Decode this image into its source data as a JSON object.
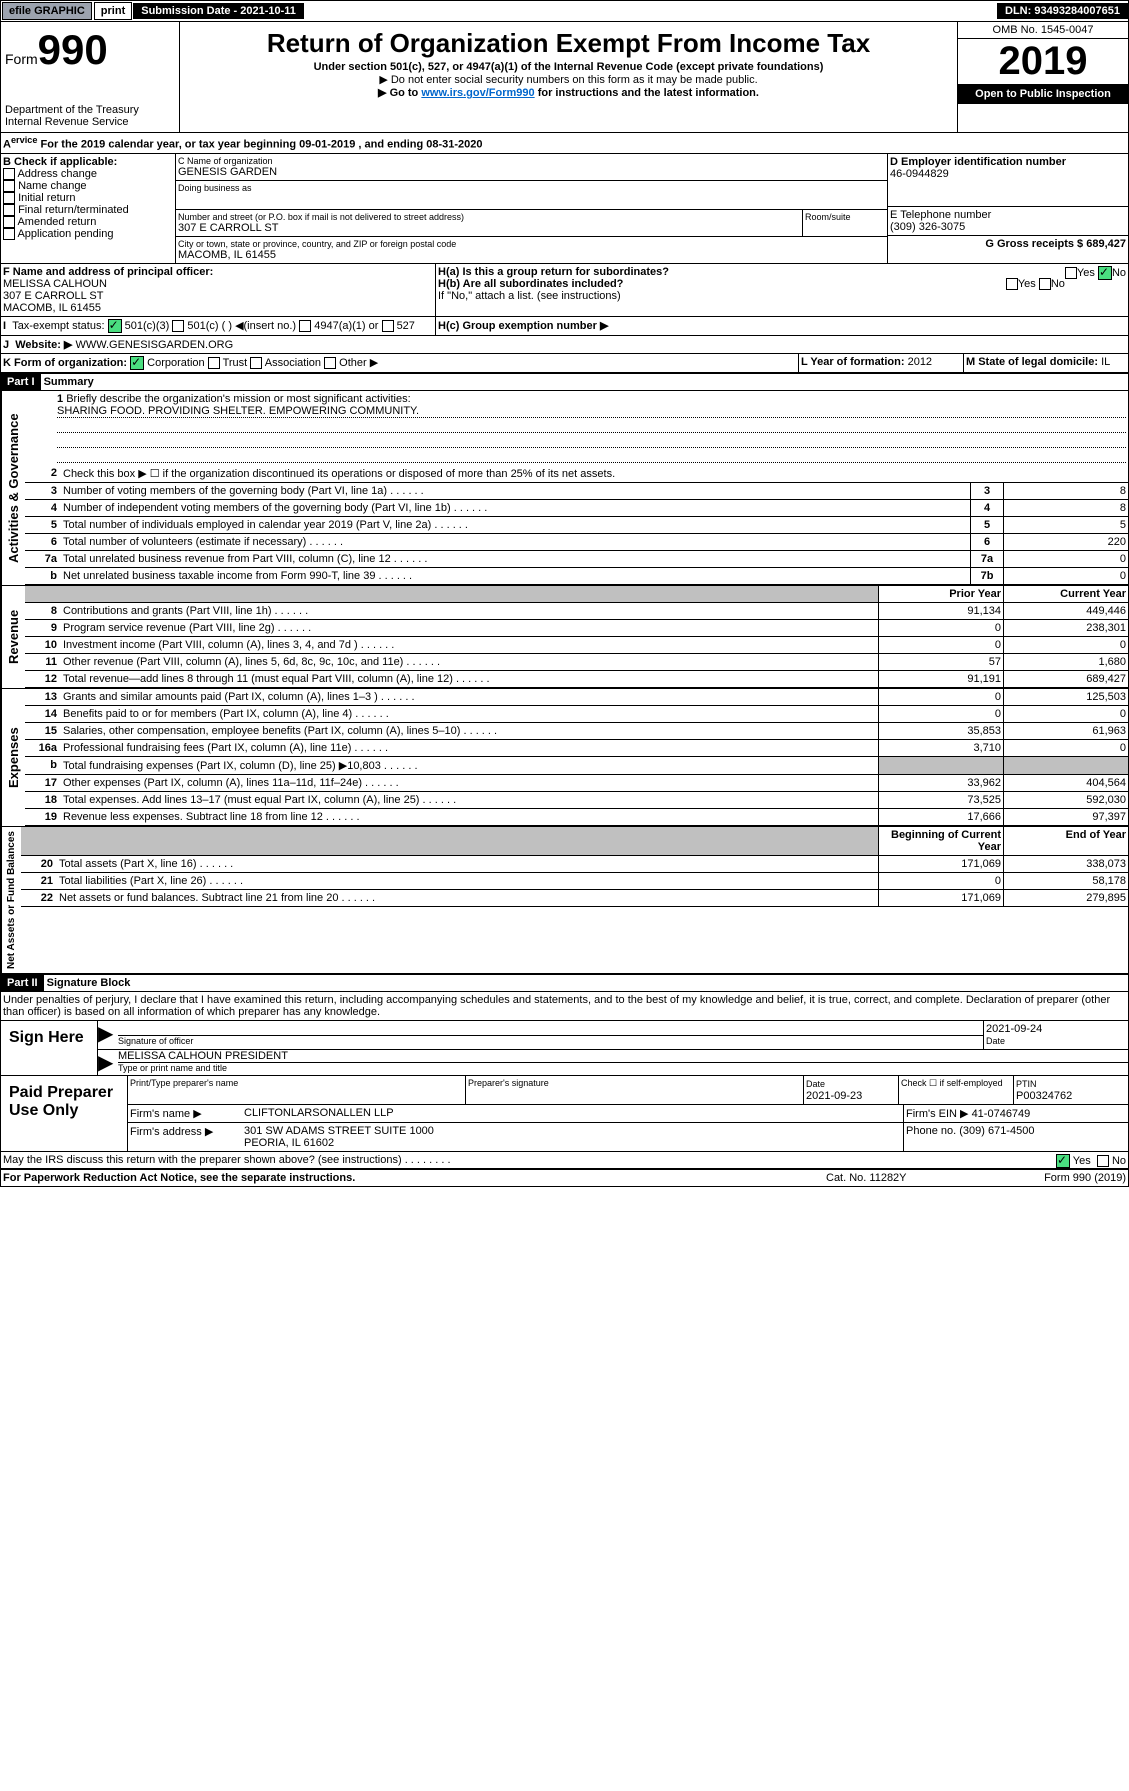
{
  "topbar": {
    "efile": "efile GRAPHIC",
    "print": "print",
    "submission": "Submission Date - 2021-10-11",
    "dln": "DLN: 93493284007651"
  },
  "header": {
    "form": "Form",
    "formnum": "990",
    "dept": "Department of the Treasury\nInternal Revenue Service",
    "title": "Return of Organization Exempt From Income Tax",
    "subtitle": "Under section 501(c), 527, or 4947(a)(1) of the Internal Revenue Code (except private foundations)",
    "note1": "▶ Do not enter social security numbers on this form as it may be made public.",
    "note2_pre": "▶ Go to ",
    "note2_link": "www.irs.gov/Form990",
    "note2_post": " for instructions and the latest information.",
    "omb": "OMB No. 1545-0047",
    "year": "2019",
    "inspect": "Open to Public Inspection"
  },
  "periodA": "For the 2019 calendar year, or tax year beginning 09-01-2019   , and ending 08-31-2020",
  "sectionB": {
    "label": "B Check if applicable:",
    "opts": [
      "Address change",
      "Name change",
      "Initial return",
      "Final return/terminated",
      "Amended return",
      "Application pending"
    ]
  },
  "sectionC": {
    "nameLabel": "C Name of organization",
    "name": "GENESIS GARDEN",
    "dbaLabel": "Doing business as",
    "addrLabel": "Number and street (or P.O. box if mail is not delivered to street address)",
    "roomLabel": "Room/suite",
    "addr": "307 E CARROLL ST",
    "cityLabel": "City or town, state or province, country, and ZIP or foreign postal code",
    "city": "MACOMB, IL  61455"
  },
  "sectionD": {
    "label": "D Employer identification number",
    "value": "46-0944829"
  },
  "sectionE": {
    "label": "E Telephone number",
    "value": "(309) 326-3075"
  },
  "sectionG": {
    "label": "G Gross receipts $",
    "value": "689,427"
  },
  "sectionF": {
    "label": "F  Name and address of principal officer:",
    "name": "MELISSA CALHOUN",
    "addr": "307 E CARROLL ST",
    "city": "MACOMB, IL  61455"
  },
  "sectionH": {
    "a": "H(a)  Is this a group return for subordinates?",
    "b": "H(b)  Are all subordinates included?",
    "note": "If \"No,\" attach a list. (see instructions)",
    "c": "H(c)  Group exemption number ▶",
    "yes": "Yes",
    "no": "No"
  },
  "sectionI": {
    "label": "Tax-exempt status:",
    "o1": "501(c)(3)",
    "o2": "501(c) (   ) ◀(insert no.)",
    "o3": "4947(a)(1) or",
    "o4": "527"
  },
  "sectionJ": {
    "label": "Website: ▶",
    "value": " WWW.GENESISGARDEN.ORG"
  },
  "sectionK": {
    "label": "K Form of organization:",
    "o1": "Corporation",
    "o2": "Trust",
    "o3": "Association",
    "o4": "Other ▶"
  },
  "sectionL": {
    "label": "L Year of formation:",
    "value": "2012"
  },
  "sectionM": {
    "label": "M State of legal domicile:",
    "value": "IL"
  },
  "part1": {
    "label": "Part I",
    "title": "Summary"
  },
  "line1": {
    "n": "1",
    "t": "Briefly describe the organization's mission or most significant activities:",
    "v": "SHARING FOOD. PROVIDING SHELTER. EMPOWERING COMMUNITY."
  },
  "line2": {
    "n": "2",
    "t": "Check this box ▶ ☐  if the organization discontinued its operations or disposed of more than 25% of its net assets."
  },
  "lines": [
    {
      "n": "3",
      "t": "Number of voting members of the governing body (Part VI, line 1a)",
      "b": "3",
      "v": "8"
    },
    {
      "n": "4",
      "t": "Number of independent voting members of the governing body (Part VI, line 1b)",
      "b": "4",
      "v": "8"
    },
    {
      "n": "5",
      "t": "Total number of individuals employed in calendar year 2019 (Part V, line 2a)",
      "b": "5",
      "v": "5"
    },
    {
      "n": "6",
      "t": "Total number of volunteers (estimate if necessary)",
      "b": "6",
      "v": "220"
    },
    {
      "n": "7a",
      "t": "Total unrelated business revenue from Part VIII, column (C), line 12",
      "b": "7a",
      "v": "0"
    },
    {
      "n": "b",
      "t": "Net unrelated business taxable income from Form 990-T, line 39",
      "b": "7b",
      "v": "0"
    }
  ],
  "colhdrs": {
    "prior": "Prior Year",
    "current": "Current Year",
    "beg": "Beginning of Current Year",
    "end": "End of Year"
  },
  "revenue": [
    {
      "n": "8",
      "t": "Contributions and grants (Part VIII, line 1h)",
      "p": "91,134",
      "c": "449,446"
    },
    {
      "n": "9",
      "t": "Program service revenue (Part VIII, line 2g)",
      "p": "0",
      "c": "238,301"
    },
    {
      "n": "10",
      "t": "Investment income (Part VIII, column (A), lines 3, 4, and 7d )",
      "p": "0",
      "c": "0"
    },
    {
      "n": "11",
      "t": "Other revenue (Part VIII, column (A), lines 5, 6d, 8c, 9c, 10c, and 11e)",
      "p": "57",
      "c": "1,680"
    },
    {
      "n": "12",
      "t": "Total revenue—add lines 8 through 11 (must equal Part VIII, column (A), line 12)",
      "p": "91,191",
      "c": "689,427"
    }
  ],
  "expenses": [
    {
      "n": "13",
      "t": "Grants and similar amounts paid (Part IX, column (A), lines 1–3 )",
      "p": "0",
      "c": "125,503"
    },
    {
      "n": "14",
      "t": "Benefits paid to or for members (Part IX, column (A), line 4)",
      "p": "0",
      "c": "0"
    },
    {
      "n": "15",
      "t": "Salaries, other compensation, employee benefits (Part IX, column (A), lines 5–10)",
      "p": "35,853",
      "c": "61,963"
    },
    {
      "n": "16a",
      "t": "Professional fundraising fees (Part IX, column (A), line 11e)",
      "p": "3,710",
      "c": "0"
    },
    {
      "n": "b",
      "t": "Total fundraising expenses (Part IX, column (D), line 25) ▶10,803",
      "p": "",
      "c": "",
      "shade": true
    },
    {
      "n": "17",
      "t": "Other expenses (Part IX, column (A), lines 11a–11d, 11f–24e)",
      "p": "33,962",
      "c": "404,564"
    },
    {
      "n": "18",
      "t": "Total expenses. Add lines 13–17 (must equal Part IX, column (A), line 25)",
      "p": "73,525",
      "c": "592,030"
    },
    {
      "n": "19",
      "t": "Revenue less expenses. Subtract line 18 from line 12",
      "p": "17,666",
      "c": "97,397"
    }
  ],
  "netassets": [
    {
      "n": "20",
      "t": "Total assets (Part X, line 16)",
      "p": "171,069",
      "c": "338,073"
    },
    {
      "n": "21",
      "t": "Total liabilities (Part X, line 26)",
      "p": "0",
      "c": "58,178"
    },
    {
      "n": "22",
      "t": "Net assets or fund balances. Subtract line 21 from line 20",
      "p": "171,069",
      "c": "279,895"
    }
  ],
  "vlabels": {
    "ag": "Activities & Governance",
    "rev": "Revenue",
    "exp": "Expenses",
    "na": "Net Assets or Fund Balances"
  },
  "part2": {
    "label": "Part II",
    "title": "Signature Block",
    "decl": "Under penalties of perjury, I declare that I have examined this return, including accompanying schedules and statements, and to the best of my knowledge and belief, it is true, correct, and complete. Declaration of preparer (other than officer) is based on all information of which preparer has any knowledge."
  },
  "sign": {
    "here": "Sign Here",
    "sig": "Signature of officer",
    "date": "2021-09-24",
    "dateL": "Date",
    "name": "MELISSA CALHOUN PRESIDENT",
    "nameL": "Type or print name and title"
  },
  "paid": {
    "label": "Paid Preparer Use Only",
    "h1": "Print/Type preparer's name",
    "h2": "Preparer's signature",
    "h3": "Date",
    "h4": "Check ☐ if self-employed",
    "h5": "PTIN",
    "date": "2021-09-23",
    "ptin": "P00324762",
    "firmL": "Firm's name    ▶",
    "firm": "CLIFTONLARSONALLEN LLP",
    "einL": "Firm's EIN ▶",
    "ein": "41-0746749",
    "addrL": "Firm's address ▶",
    "addr": "301 SW ADAMS STREET SUITE 1000",
    "city": "PEORIA, IL  61602",
    "phoneL": "Phone no.",
    "phone": "(309) 671-4500"
  },
  "footer": {
    "q": "May the IRS discuss this return with the preparer shown above? (see instructions)",
    "yes": "Yes",
    "no": "No",
    "pra": "For Paperwork Reduction Act Notice, see the separate instructions.",
    "cat": "Cat. No. 11282Y",
    "form": "Form 990 (2019)"
  }
}
